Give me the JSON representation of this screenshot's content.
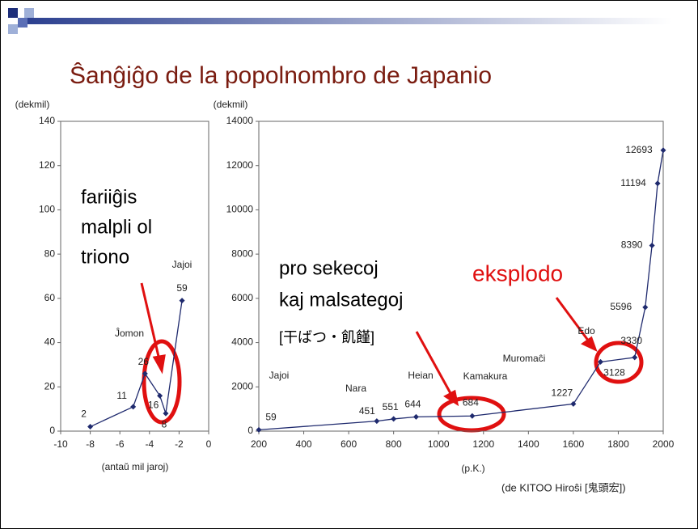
{
  "title": "Ŝanĝiĝo de la popolnombro de Japanio",
  "source": "(de KITOO Hiroŝi [鬼頭宏])",
  "chart_data": [
    {
      "type": "line",
      "y_label": "(dekmil)",
      "x_label": "(antaŭ mil jaroj)",
      "x": [
        -8,
        -5.1,
        -4.3,
        -3.3,
        -2.9,
        -1.8
      ],
      "values": [
        2,
        11,
        26,
        16,
        8,
        59
      ],
      "color": "#1f2a6e",
      "xlim": [
        -10,
        0
      ],
      "xticks": [
        -10,
        -8,
        -6,
        -4,
        -2,
        0
      ],
      "ylim": [
        0,
        140
      ],
      "yticks": [
        0,
        20,
        40,
        60,
        80,
        100,
        120,
        140
      ],
      "periods": [
        "Ĵomon",
        "Jajoi"
      ],
      "annotations": [
        {
          "lines": [
            "fariiĝis",
            "malpli ol",
            "triono"
          ]
        }
      ]
    },
    {
      "type": "line",
      "y_label": "(dekmil)",
      "x_label": "(p.K.)",
      "x": [
        200,
        725,
        800,
        900,
        1150,
        1600,
        1721,
        1873,
        1920,
        1950,
        1975,
        2000
      ],
      "values": [
        59,
        451,
        551,
        644,
        684,
        1227,
        3128,
        3330,
        5596,
        8390,
        11194,
        12693
      ],
      "color": "#1f2a6e",
      "xlim": [
        200,
        2000
      ],
      "xticks": [
        200,
        400,
        600,
        800,
        1000,
        1200,
        1400,
        1600,
        1800,
        2000
      ],
      "ylim": [
        0,
        14000
      ],
      "yticks": [
        0,
        2000,
        4000,
        6000,
        8000,
        10000,
        12000,
        14000
      ],
      "periods": [
        "Jajoi",
        "Nara",
        "Heian",
        "Kamakura",
        "Muromaĉi",
        "Edo"
      ],
      "annotations": [
        {
          "lines": [
            "pro sekecoj",
            "kaj malsategoj"
          ]
        },
        {
          "lines": [
            "[干ばつ・飢饉]"
          ]
        },
        {
          "lines": [
            "eksplodo"
          ]
        }
      ]
    }
  ]
}
